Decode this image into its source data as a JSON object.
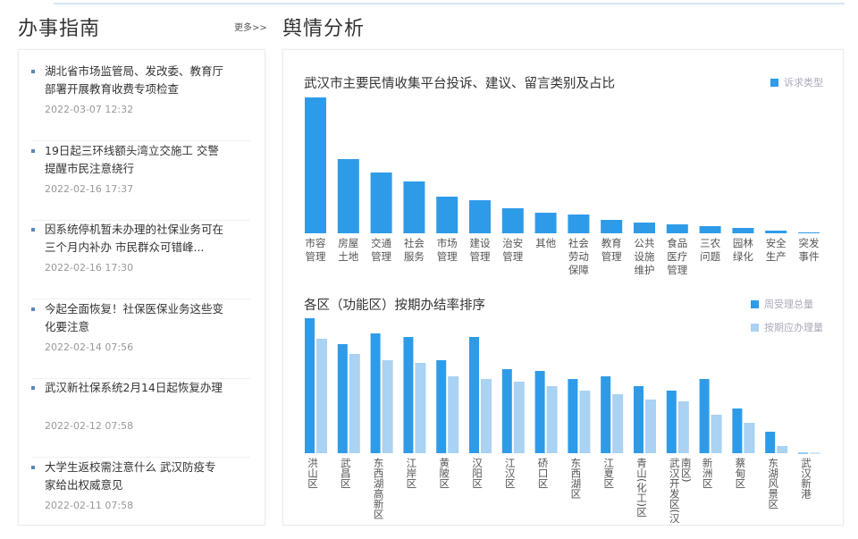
{
  "left": {
    "title": "办事指南",
    "more": "更多>>",
    "items": [
      {
        "title": "湖北省市场监管局、发改委、教育厅部署开展教育收费专项检查",
        "date": "2022-03-07 12:32"
      },
      {
        "title": "19日起三环线额头湾立交施工 交警提醒市民注意绕行",
        "date": "2022-02-16 17:37"
      },
      {
        "title": "因系统停机暂未办理的社保业务可在三个月内补办 市民群众可错峰...",
        "date": "2022-02-16 17:30"
      },
      {
        "title": "今起全面恢复！社保医保业务这些变化要注意",
        "date": "2022-02-14 07:56"
      },
      {
        "title": "武汉新社保系统2月14日起恢复办理",
        "date": "2022-02-12 07:58"
      },
      {
        "title": "大学生返校需注意什么 武汉防疫专家给出权威意见",
        "date": "2022-02-11 07:58"
      }
    ]
  },
  "right": {
    "title": "舆情分析"
  },
  "colors": {
    "primary": "#2e9be8",
    "secondary": "#a9d2f3"
  },
  "chart_data": [
    {
      "type": "bar",
      "title": "武汉市主要民情收集平台投诉、建议、留言类别及占比",
      "legend": [
        "诉求类型"
      ],
      "legend_position": "top-right",
      "categories": [
        "市容管理",
        "房屋土地",
        "交通管理",
        "社会服务",
        "市场管理",
        "建设管理",
        "治安管理",
        "其他",
        "社会劳动保障",
        "教育管理",
        "公共设施维护",
        "食品医疗管理",
        "三农问题",
        "园林绿化",
        "安全生产",
        "突发事件"
      ],
      "values": [
        152,
        83,
        68,
        58,
        41,
        37,
        28,
        23,
        21,
        15,
        12,
        10,
        8,
        6,
        3,
        1
      ],
      "ylim": [
        0,
        160
      ]
    },
    {
      "type": "bar",
      "title": "各区（功能区）按期办结率排序",
      "legend_position": "top-right",
      "categories": [
        "洪山区",
        "武昌区",
        "东西湖高新区",
        "江岸区",
        "黄陂区",
        "汉阳区",
        "江汉区",
        "硚口区",
        "东西湖区",
        "江夏区",
        "青山(化工)区",
        "武汉开发区(汉南区)",
        "新洲区",
        "蔡甸区",
        "东湖风景区",
        "武汉新港"
      ],
      "series": [
        {
          "name": "周受理总量",
          "values": [
            151,
            122,
            134,
            130,
            104,
            130,
            94,
            92,
            83,
            86,
            75,
            70,
            83,
            50,
            24,
            0.5
          ]
        },
        {
          "name": "按期应办理量",
          "values": [
            128,
            111,
            104,
            101,
            86,
            83,
            80,
            75,
            70,
            66,
            60,
            58,
            43,
            34,
            8,
            0.5
          ]
        }
      ],
      "ylim": [
        0,
        160
      ]
    }
  ]
}
